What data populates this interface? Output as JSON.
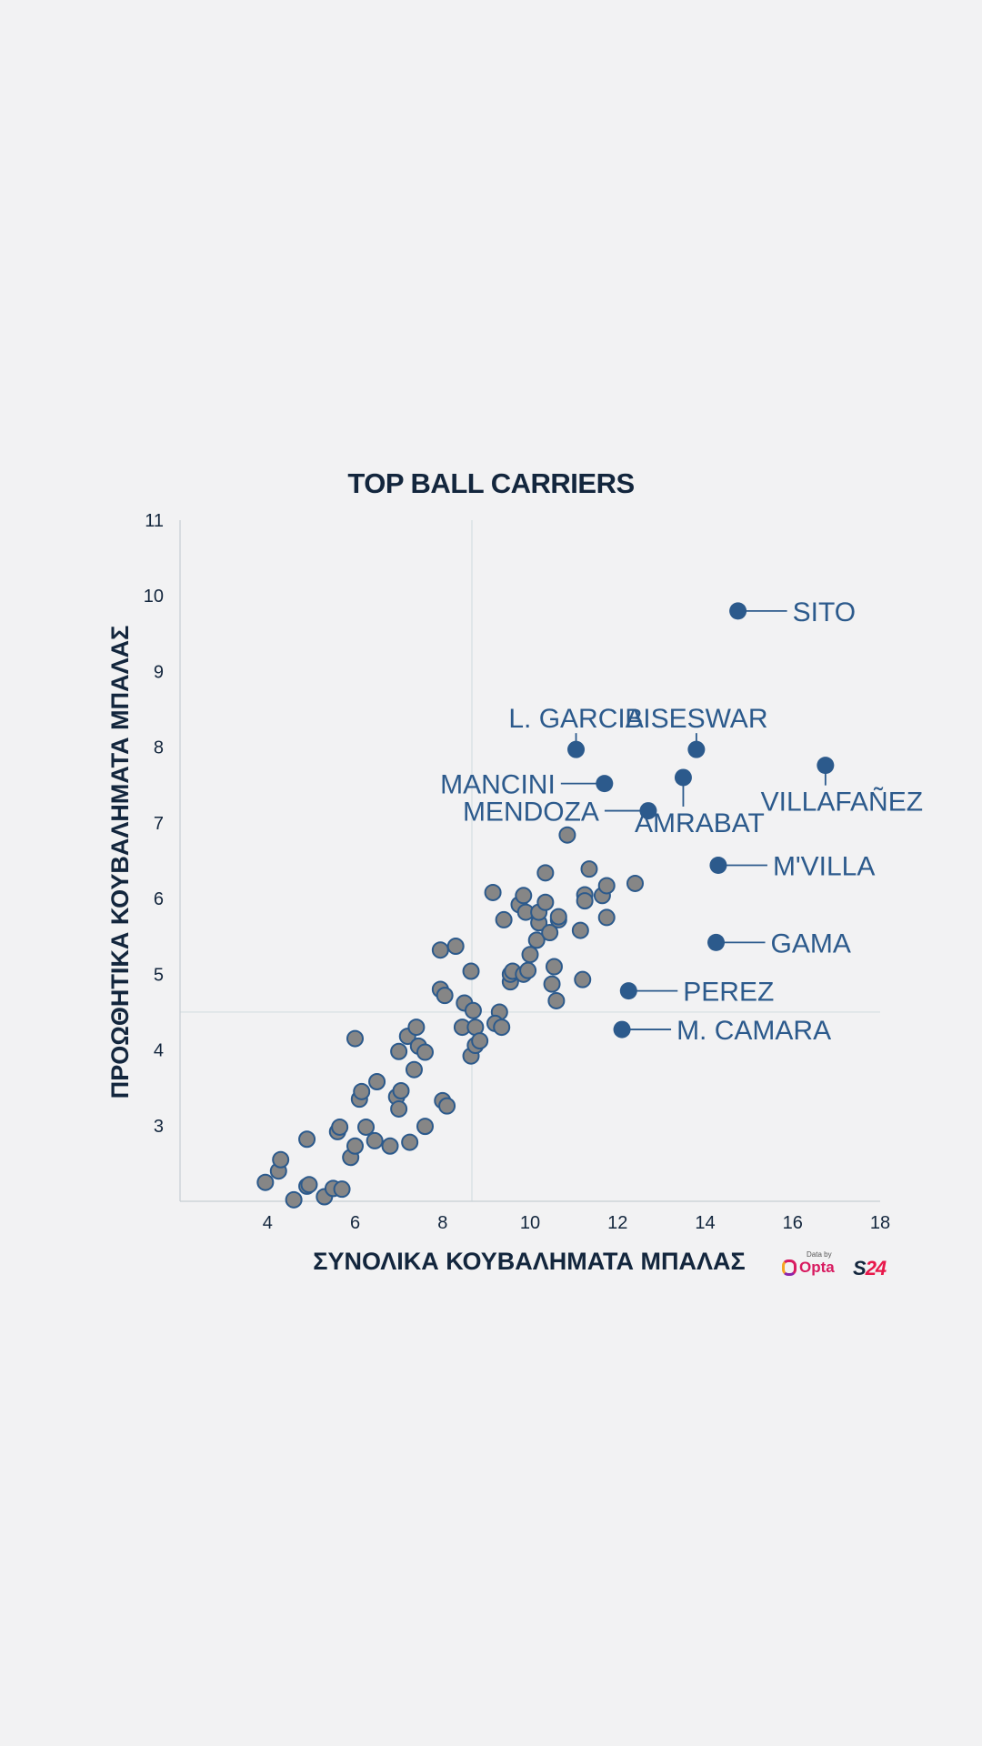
{
  "logos": {
    "data_by": "Data by",
    "opta": "Opta",
    "s24_prefix": "S",
    "s24_suffix": "24"
  },
  "colors": {
    "background": "#f2f2f3",
    "point_fill": "#868686",
    "point_stroke": "#2c5a8c",
    "highlight": "#2c5a8c",
    "text": "#13263d",
    "reference_line": "#d4dde2"
  },
  "chart_data": {
    "type": "scatter",
    "title": "TOP BALL CARRIERS",
    "xlabel": "ΣΥΝΟΛΙΚΑ ΚΟΥΒΑΛΗΜΑΤΑ ΜΠΑΛΑΣ",
    "ylabel": "ΠΡΟΩΘΗΤΙΚΑ ΚΟΥΒΑΛΗΜΑΤΑ ΜΠΑΛΑΣ",
    "xlim": [
      2,
      18
    ],
    "ylim": [
      2,
      11
    ],
    "xticks": [
      4,
      6,
      8,
      10,
      12,
      14,
      16,
      18
    ],
    "yticks": [
      3,
      4,
      5,
      6,
      7,
      8,
      9,
      10,
      11
    ],
    "grid": false,
    "reference_lines": {
      "x": 8.67,
      "y": 4.5
    },
    "points": [
      [
        3.95,
        2.25
      ],
      [
        4.25,
        2.4
      ],
      [
        4.3,
        2.55
      ],
      [
        4.6,
        2.02
      ],
      [
        4.9,
        2.2
      ],
      [
        4.95,
        2.22
      ],
      [
        4.9,
        2.82
      ],
      [
        5.3,
        2.06
      ],
      [
        5.5,
        2.17
      ],
      [
        5.7,
        2.16
      ],
      [
        5.6,
        2.92
      ],
      [
        5.65,
        2.98
      ],
      [
        5.9,
        2.58
      ],
      [
        6.0,
        2.73
      ],
      [
        6.0,
        4.15
      ],
      [
        6.1,
        3.35
      ],
      [
        6.15,
        3.45
      ],
      [
        6.25,
        2.98
      ],
      [
        6.45,
        2.8
      ],
      [
        6.5,
        3.58
      ],
      [
        6.8,
        2.73
      ],
      [
        6.95,
        3.38
      ],
      [
        7.0,
        3.22
      ],
      [
        7.05,
        3.46
      ],
      [
        7.0,
        3.98
      ],
      [
        7.2,
        4.18
      ],
      [
        7.25,
        2.78
      ],
      [
        7.35,
        3.74
      ],
      [
        7.4,
        4.3
      ],
      [
        7.45,
        4.05
      ],
      [
        7.6,
        3.97
      ],
      [
        7.6,
        2.99
      ],
      [
        7.95,
        4.8
      ],
      [
        8.05,
        4.72
      ],
      [
        8.0,
        3.33
      ],
      [
        8.1,
        3.26
      ],
      [
        7.95,
        5.32
      ],
      [
        8.3,
        5.37
      ],
      [
        8.45,
        4.3
      ],
      [
        8.5,
        4.62
      ],
      [
        8.65,
        3.92
      ],
      [
        8.65,
        5.04
      ],
      [
        8.7,
        4.52
      ],
      [
        8.75,
        4.3
      ],
      [
        8.75,
        4.06
      ],
      [
        8.85,
        4.12
      ],
      [
        9.15,
        6.08
      ],
      [
        9.3,
        4.5
      ],
      [
        9.2,
        4.35
      ],
      [
        9.35,
        4.3
      ],
      [
        9.4,
        5.72
      ],
      [
        9.55,
        4.9
      ],
      [
        9.55,
        5.0
      ],
      [
        9.6,
        5.04
      ],
      [
        9.75,
        5.92
      ],
      [
        9.85,
        5.0
      ],
      [
        9.9,
        5.82
      ],
      [
        9.85,
        6.04
      ],
      [
        9.95,
        5.05
      ],
      [
        10.0,
        5.26
      ],
      [
        10.15,
        5.45
      ],
      [
        10.2,
        5.68
      ],
      [
        10.2,
        5.82
      ],
      [
        10.35,
        5.95
      ],
      [
        10.35,
        6.34
      ],
      [
        10.45,
        5.55
      ],
      [
        10.5,
        4.87
      ],
      [
        10.55,
        5.1
      ],
      [
        10.6,
        4.65
      ],
      [
        10.65,
        5.72
      ],
      [
        10.65,
        5.76
      ],
      [
        10.85,
        6.84
      ],
      [
        11.15,
        5.58
      ],
      [
        11.2,
        4.93
      ],
      [
        11.25,
        6.05
      ],
      [
        11.25,
        5.97
      ],
      [
        11.35,
        6.39
      ],
      [
        11.65,
        6.04
      ],
      [
        11.75,
        5.75
      ],
      [
        11.75,
        6.17
      ],
      [
        12.4,
        6.2
      ]
    ],
    "highlighted": [
      {
        "name": "SITO",
        "x": 14.75,
        "y": 9.8
      },
      {
        "name": "L. GARCIA",
        "x": 11.05,
        "y": 7.97
      },
      {
        "name": "BISESWAR",
        "x": 13.8,
        "y": 7.97
      },
      {
        "name": "MANCINI",
        "x": 11.7,
        "y": 7.52
      },
      {
        "name": "AMRABAT",
        "x": 13.5,
        "y": 7.6
      },
      {
        "name": "VILLAFAÑEZ",
        "x": 16.75,
        "y": 7.76
      },
      {
        "name": "MENDOZA",
        "x": 12.7,
        "y": 7.16
      },
      {
        "name": "M'VILLA",
        "x": 14.3,
        "y": 6.44
      },
      {
        "name": "GAMA",
        "x": 14.25,
        "y": 5.42
      },
      {
        "name": "PEREZ",
        "x": 12.25,
        "y": 4.78
      },
      {
        "name": "M. CAMARA",
        "x": 12.1,
        "y": 4.27
      }
    ]
  }
}
